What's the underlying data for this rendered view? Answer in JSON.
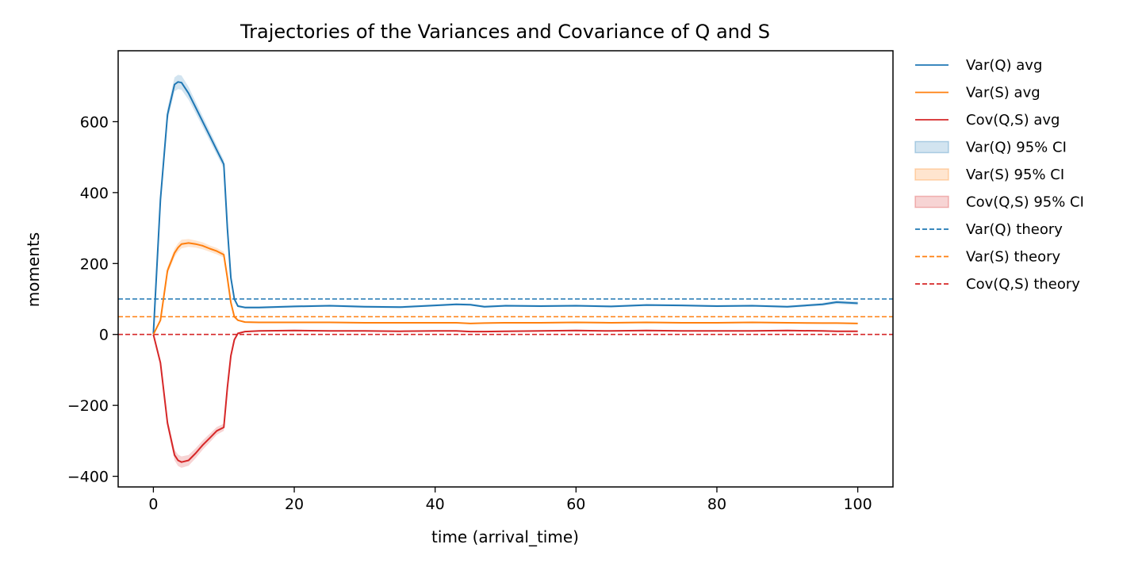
{
  "chart_data": {
    "type": "line",
    "title": "Trajectories of the Variances and Covariance of Q and S",
    "xlabel": "time (arrival_time)",
    "ylabel": "moments",
    "xlim": [
      -5,
      105
    ],
    "ylim": [
      -430,
      800
    ],
    "xticks": [
      0,
      20,
      40,
      60,
      80,
      100
    ],
    "xtick_labels": [
      "0",
      "20",
      "40",
      "60",
      "80",
      "100"
    ],
    "yticks": [
      -400,
      -200,
      0,
      200,
      400,
      600
    ],
    "ytick_labels": [
      "−400",
      "−200",
      "0",
      "200",
      "400",
      "600"
    ],
    "grid": false,
    "legend_position": "outside-right",
    "colors": {
      "varQ": "#1f77b4",
      "varS": "#ff7f0e",
      "cov": "#d62728"
    },
    "x": [
      0,
      1,
      2,
      3,
      3.5,
      4,
      5,
      6,
      7,
      8,
      9,
      10,
      10.5,
      11,
      11.5,
      12,
      13,
      15,
      20,
      25,
      30,
      35,
      40,
      43,
      45,
      47,
      50,
      55,
      60,
      65,
      70,
      75,
      80,
      85,
      90,
      95,
      97,
      100
    ],
    "series": [
      {
        "name": "Var(Q) avg",
        "key": "varQ",
        "values": [
          2,
          380,
          620,
          705,
          712,
          710,
          680,
          640,
          600,
          560,
          520,
          480,
          300,
          160,
          100,
          80,
          76,
          76,
          79,
          81,
          78,
          77,
          82,
          85,
          84,
          78,
          81,
          80,
          81,
          79,
          83,
          82,
          80,
          81,
          78,
          85,
          91,
          88
        ],
        "ci_halfwidth": [
          2,
          12,
          18,
          20,
          20,
          20,
          18,
          16,
          15,
          14,
          13,
          12,
          8,
          5,
          4,
          3,
          3,
          3,
          3,
          3,
          3,
          3,
          3,
          3,
          3,
          3,
          3,
          3,
          3,
          3,
          3,
          3,
          3,
          3,
          3,
          4,
          5,
          5
        ]
      },
      {
        "name": "Var(S) avg",
        "key": "varS",
        "values": [
          0,
          40,
          180,
          230,
          245,
          255,
          258,
          255,
          250,
          242,
          235,
          225,
          160,
          90,
          50,
          40,
          35,
          34,
          34,
          34,
          33,
          33,
          33,
          33,
          31,
          32,
          33,
          33,
          34,
          33,
          34,
          33,
          33,
          34,
          33,
          32,
          32,
          31
        ],
        "ci_halfwidth": [
          1,
          5,
          10,
          12,
          12,
          12,
          11,
          10,
          10,
          9,
          9,
          8,
          6,
          4,
          2,
          2,
          2,
          2,
          2,
          2,
          2,
          2,
          2,
          2,
          2,
          2,
          2,
          2,
          2,
          2,
          2,
          2,
          2,
          2,
          2,
          2,
          2,
          2
        ]
      },
      {
        "name": "Cov(Q,S) avg",
        "key": "cov",
        "values": [
          0,
          -80,
          -250,
          -340,
          -355,
          -360,
          -355,
          -335,
          -312,
          -292,
          -272,
          -262,
          -150,
          -60,
          -15,
          3,
          8,
          10,
          11,
          10,
          10,
          9,
          10,
          10,
          8,
          8,
          9,
          10,
          11,
          10,
          11,
          10,
          10,
          10,
          11,
          10,
          9,
          9
        ],
        "ci_halfwidth": [
          1,
          6,
          12,
          15,
          16,
          16,
          15,
          14,
          13,
          12,
          11,
          10,
          7,
          4,
          2,
          2,
          2,
          2,
          2,
          2,
          2,
          2,
          2,
          2,
          2,
          2,
          2,
          2,
          2,
          2,
          2,
          2,
          2,
          2,
          2,
          2,
          2,
          2
        ]
      }
    ],
    "theory": [
      {
        "name": "Var(Q) theory",
        "key": "varQ",
        "value": 100
      },
      {
        "name": "Var(S) theory",
        "key": "varS",
        "value": 50
      },
      {
        "name": "Cov(Q,S) theory",
        "key": "cov",
        "value": 0
      }
    ],
    "legend": [
      {
        "label": "Var(Q) avg",
        "key": "varQ",
        "style": "line"
      },
      {
        "label": "Var(S) avg",
        "key": "varS",
        "style": "line"
      },
      {
        "label": "Cov(Q,S) avg",
        "key": "cov",
        "style": "line"
      },
      {
        "label": "Var(Q) 95% CI",
        "key": "varQ",
        "style": "patch"
      },
      {
        "label": "Var(S) 95% CI",
        "key": "varS",
        "style": "patch"
      },
      {
        "label": "Cov(Q,S) 95% CI",
        "key": "cov",
        "style": "patch"
      },
      {
        "label": "Var(Q) theory",
        "key": "varQ",
        "style": "dashed"
      },
      {
        "label": "Var(S) theory",
        "key": "varS",
        "style": "dashed"
      },
      {
        "label": "Cov(Q,S) theory",
        "key": "cov",
        "style": "dashed"
      }
    ]
  }
}
